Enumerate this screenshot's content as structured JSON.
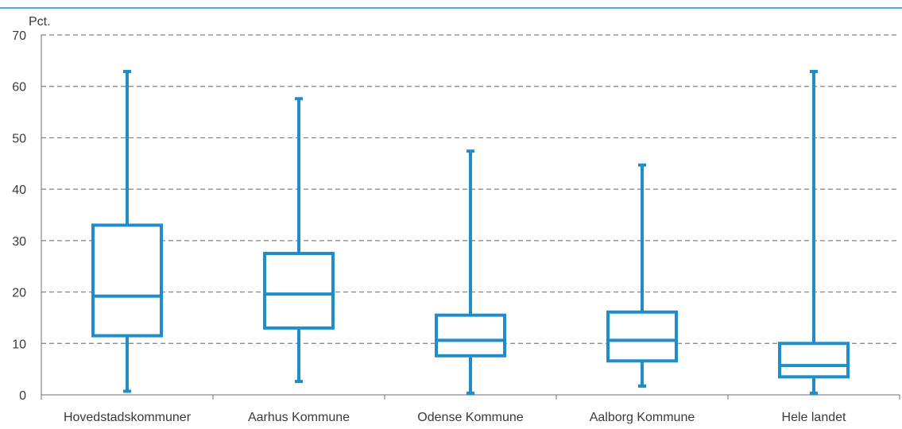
{
  "chart_data": {
    "type": "boxplot",
    "ylabel": "Pct.",
    "ylim": [
      0,
      70
    ],
    "yticks": [
      0,
      10,
      20,
      30,
      40,
      50,
      60,
      70
    ],
    "grid": true,
    "grid_style": "dashed",
    "color": "#1f8dcc",
    "categories": [
      "Hovedstadskommuner",
      "Aarhus Kommune",
      "Odense Kommune",
      "Aalborg Kommune",
      "Hele landet"
    ],
    "boxes": [
      {
        "category": "Hovedstadskommuner",
        "min": 0.7,
        "q1": 11.5,
        "median": 19.2,
        "q3": 33.0,
        "max": 62.9
      },
      {
        "category": "Aarhus Kommune",
        "min": 2.6,
        "q1": 13.0,
        "median": 19.6,
        "q3": 27.5,
        "max": 57.6
      },
      {
        "category": "Odense Kommune",
        "min": 0.3,
        "q1": 7.6,
        "median": 10.6,
        "q3": 15.5,
        "max": 47.4
      },
      {
        "category": "Aalborg Kommune",
        "min": 1.7,
        "q1": 6.6,
        "median": 10.6,
        "q3": 16.1,
        "max": 44.7
      },
      {
        "category": "Hele landet",
        "min": 0.3,
        "q1": 3.5,
        "median": 5.7,
        "q3": 10.0,
        "max": 62.9
      }
    ]
  }
}
